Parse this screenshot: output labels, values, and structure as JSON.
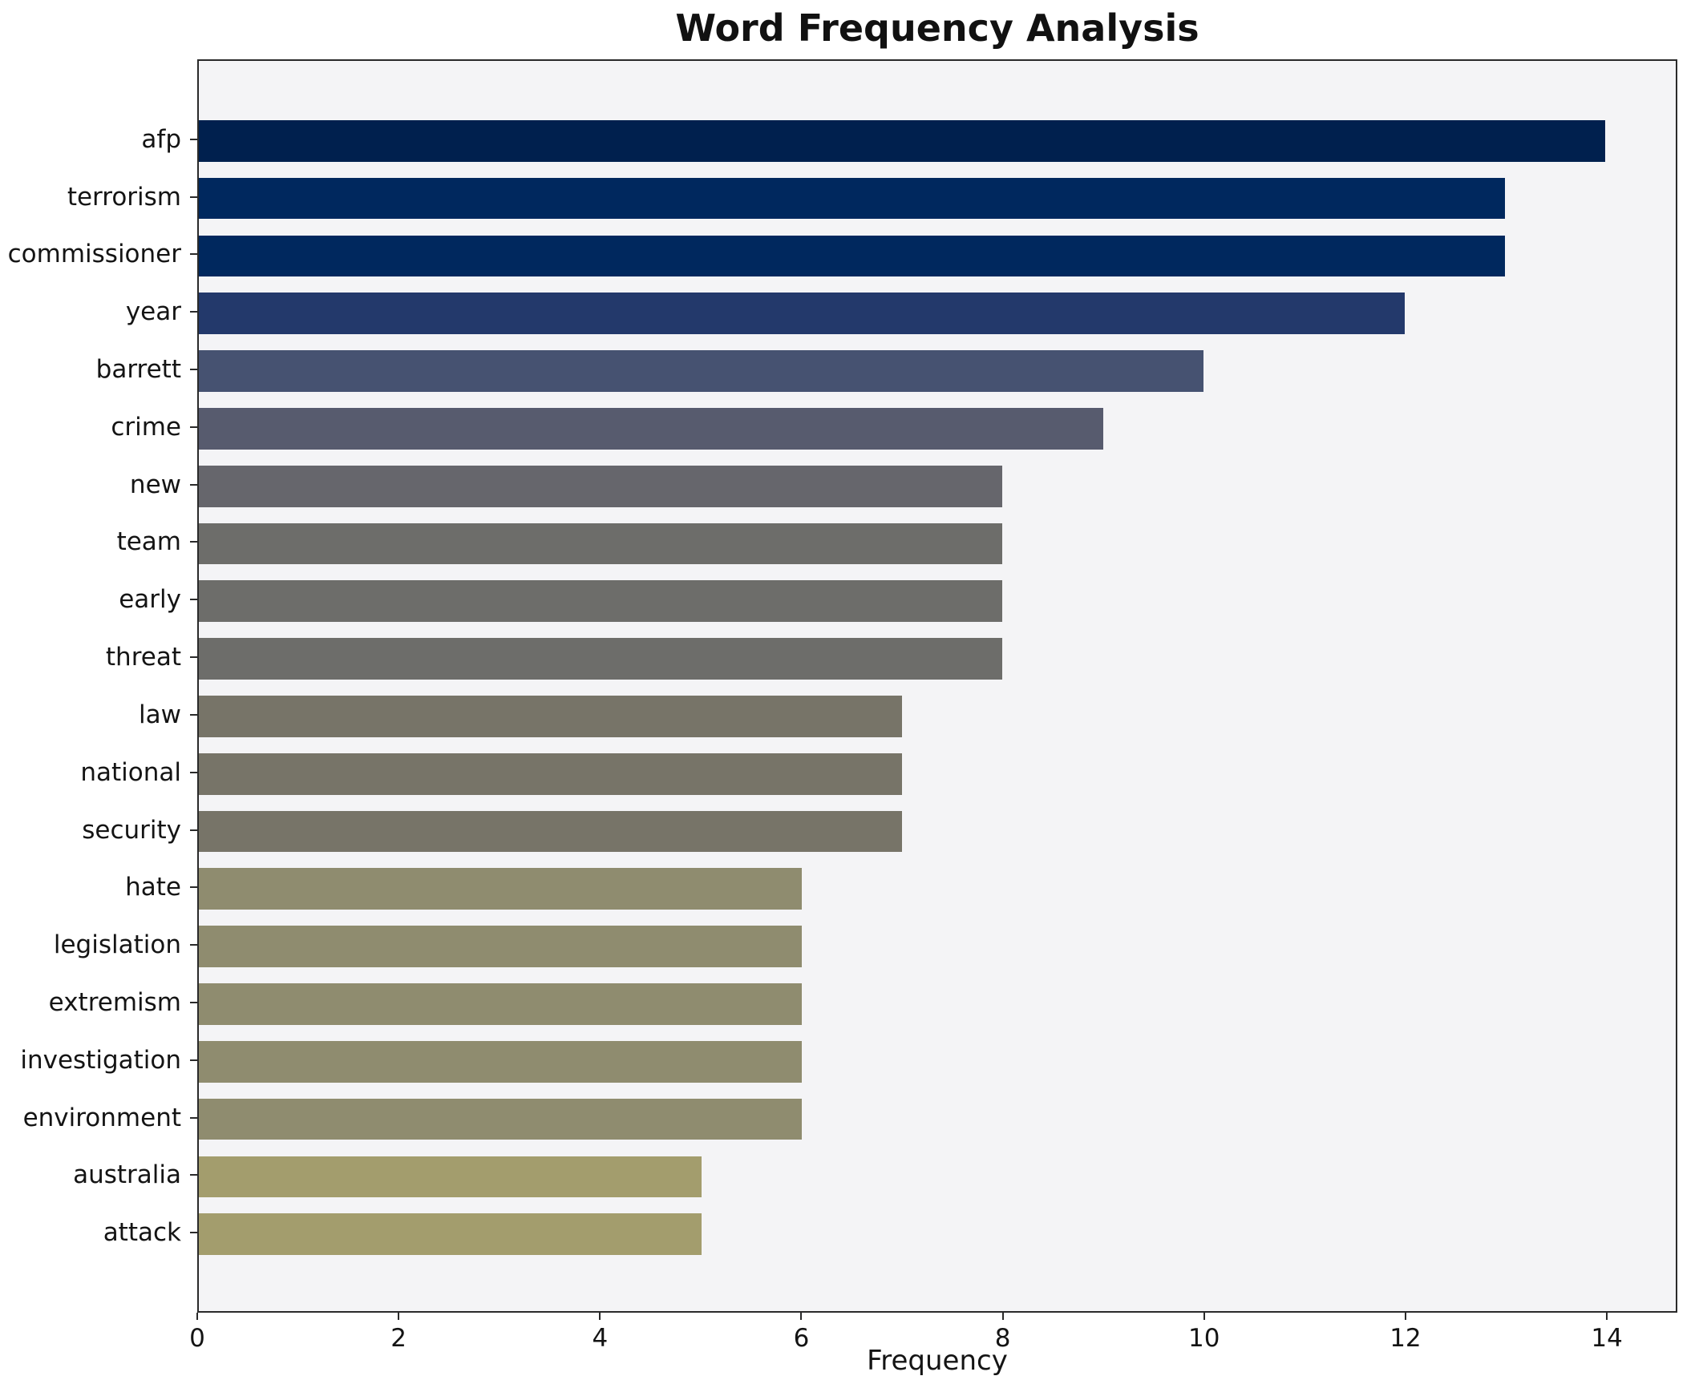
{
  "chart_data": {
    "type": "bar",
    "orientation": "horizontal",
    "title": "Word Frequency Analysis",
    "xlabel": "Frequency",
    "ylabel": "",
    "categories": [
      "afp",
      "terrorism",
      "commissioner",
      "year",
      "barrett",
      "crime",
      "new",
      "team",
      "early",
      "threat",
      "law",
      "national",
      "security",
      "hate",
      "legislation",
      "extremism",
      "investigation",
      "environment",
      "australia",
      "attack"
    ],
    "values": [
      14,
      13,
      13,
      12,
      10,
      9,
      8,
      8,
      8,
      8,
      7,
      7,
      7,
      6,
      6,
      6,
      6,
      6,
      5,
      5
    ],
    "bar_colors": [
      "#00204e",
      "#00285e",
      "#00285e",
      "#23396b",
      "#465271",
      "#575b6e",
      "#66666c",
      "#6d6d6a",
      "#6d6d6a",
      "#6d6d6a",
      "#777468",
      "#777468",
      "#777468",
      "#8f8c6f",
      "#8f8c6f",
      "#8f8c6f",
      "#8f8c6f",
      "#8f8c6f",
      "#a39d6d",
      "#a39d6d"
    ],
    "xlim": [
      0,
      14.7
    ],
    "xticks": [
      0,
      2,
      4,
      6,
      8,
      10,
      12,
      14
    ],
    "grid": false,
    "legend_position": "none",
    "plot_background": "#f4f4f6",
    "figure_background": "#ffffff"
  }
}
